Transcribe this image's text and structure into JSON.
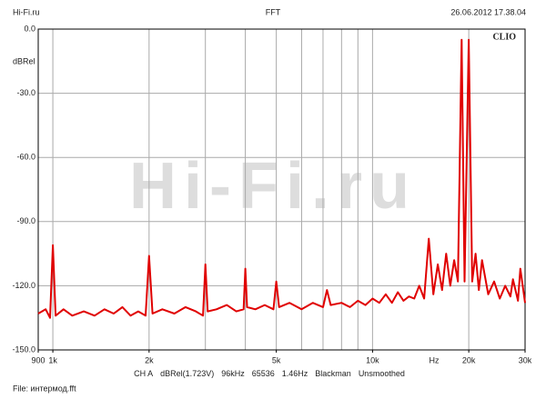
{
  "chart_data": {
    "type": "line",
    "header_left": "Hi-Fi.ru",
    "title": "FFT",
    "header_right": "26.06.2012 17.38.04",
    "ylabel": "dBRel",
    "xlabel": "Hz",
    "brand": "CLIO",
    "watermark": "Hi-Fi.ru",
    "info": [
      "CH A",
      "dBRel(1.723V)",
      "96kHz",
      "65536",
      "1.46Hz",
      "Blackman",
      "Unsmoothed"
    ],
    "file": "File: интермод.fft",
    "xscale": "log",
    "xlim": [
      900,
      30000
    ],
    "ylim": [
      -150,
      0
    ],
    "xticks": [
      {
        "value": 900,
        "label": "900"
      },
      {
        "value": 1000,
        "label": "1k"
      },
      {
        "value": 2000,
        "label": "2k"
      },
      {
        "value": 5000,
        "label": "5k"
      },
      {
        "value": 10000,
        "label": "10k"
      },
      {
        "value": 20000,
        "label": "20k"
      },
      {
        "value": 30000,
        "label": "30k"
      }
    ],
    "xgrid": [
      1000,
      2000,
      3000,
      4000,
      5000,
      6000,
      7000,
      8000,
      9000,
      10000,
      20000
    ],
    "yticks": [
      {
        "value": 0,
        "label": "0.0"
      },
      {
        "value": -30,
        "label": "-30.0"
      },
      {
        "value": -60,
        "label": "-60.0"
      },
      {
        "value": -90,
        "label": "-90.0"
      },
      {
        "value": -120,
        "label": "-120.0"
      },
      {
        "value": -150,
        "label": "-150.0"
      }
    ],
    "grid": true,
    "x": [
      900,
      950,
      980,
      1000,
      1020,
      1080,
      1150,
      1250,
      1350,
      1450,
      1550,
      1650,
      1750,
      1850,
      1950,
      2000,
      2050,
      2200,
      2400,
      2600,
      2800,
      2950,
      3000,
      3050,
      3250,
      3500,
      3750,
      3950,
      4000,
      4050,
      4300,
      4600,
      4900,
      5000,
      5100,
      5500,
      6000,
      6500,
      7000,
      7200,
      7400,
      8000,
      8500,
      9000,
      9500,
      10000,
      10500,
      11000,
      11500,
      12000,
      12500,
      13000,
      13500,
      14000,
      14500,
      15000,
      15500,
      16000,
      16500,
      17000,
      17500,
      18000,
      18500,
      19000,
      19400,
      20000,
      20500,
      21000,
      21500,
      22000,
      23000,
      24000,
      25000,
      26000,
      27000,
      27500,
      28500,
      29000,
      30000
    ],
    "series": [
      {
        "name": "CH A",
        "color": "#e00000",
        "values": [
          -133,
          -131,
          -135,
          -101,
          -134,
          -131,
          -134,
          -132,
          -134,
          -131,
          -133,
          -130,
          -134,
          -132,
          -134,
          -106,
          -133,
          -131,
          -133,
          -130,
          -132,
          -134,
          -110,
          -132,
          -131,
          -129,
          -132,
          -131,
          -112,
          -130,
          -131,
          -129,
          -131,
          -118,
          -130,
          -128,
          -131,
          -128,
          -130,
          -122,
          -129,
          -128,
          -130,
          -127,
          -129,
          -126,
          -128,
          -124,
          -128,
          -123,
          -127,
          -125,
          -126,
          -120,
          -126,
          -98,
          -124,
          -110,
          -122,
          -105,
          -120,
          -108,
          -118,
          -5,
          -118,
          -5,
          -118,
          -105,
          -122,
          -108,
          -124,
          -118,
          -126,
          -120,
          -125,
          -117,
          -127,
          -112,
          -128
        ]
      }
    ]
  }
}
